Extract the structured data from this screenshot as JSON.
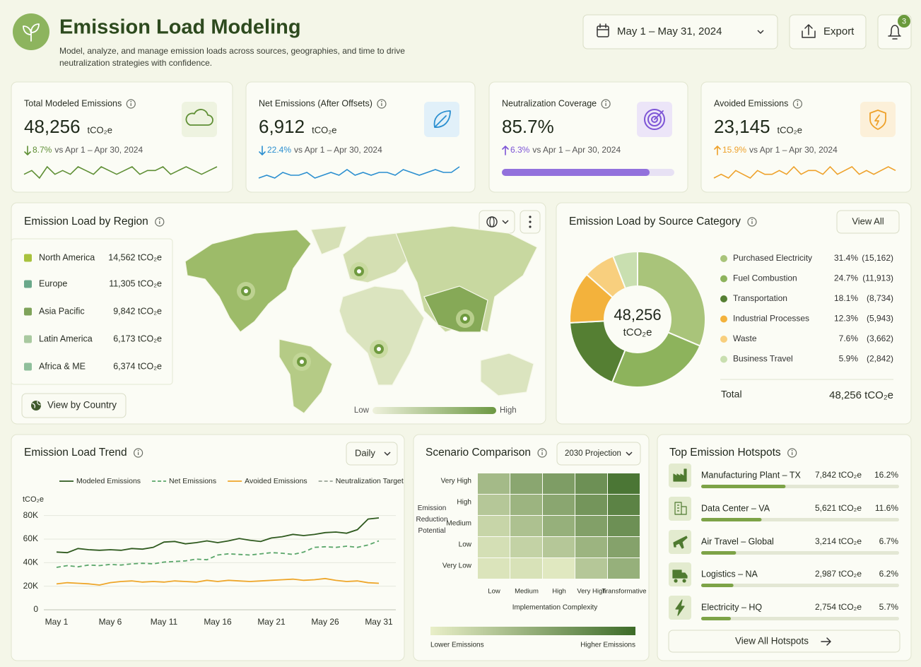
{
  "header": {
    "title": "Emission Load Modeling",
    "subtitle": "Model, analyze, and manage emission loads across sources, geographies, and time to drive neutralization strategies with confidence.",
    "date_range": "May 1 – May 31, 2024",
    "export": "Export",
    "notifications": "3"
  },
  "kpis": [
    {
      "title": "Total Modeled Emissions",
      "value": "48,256",
      "unit": "tCO₂e",
      "direction": "down",
      "change": "8.7%",
      "comparison": "vs Apr 1 – Apr 30, 2024",
      "color": "#5f8f35",
      "sparkline": [
        5,
        6,
        4,
        7,
        5,
        6,
        5,
        7,
        6,
        5,
        7,
        6,
        5,
        6,
        7,
        5,
        6,
        6,
        7,
        5,
        6,
        7,
        6,
        5,
        6,
        7
      ]
    },
    {
      "title": "Net Emissions (After Offsets)",
      "value": "6,912",
      "unit": "tCO₂e",
      "direction": "down",
      "change": "22.4%",
      "comparison": "vs Apr 1 – Apr 30, 2024",
      "color": "#2b8fd0",
      "sparkline": [
        4,
        5,
        4,
        6,
        5,
        5,
        6,
        4,
        5,
        6,
        5,
        7,
        5,
        6,
        5,
        6,
        6,
        5,
        7,
        6,
        5,
        6,
        7,
        6,
        6,
        8
      ]
    },
    {
      "title": "Neutralization Coverage",
      "value": "85.7%",
      "progress": 85.7,
      "direction": "up",
      "change": "6.3%",
      "comparison": "vs Apr 1 – Apr 30, 2024",
      "color": "#7d55d6"
    },
    {
      "title": "Avoided Emissions",
      "value": "23,145",
      "unit": "tCO₂e",
      "direction": "up",
      "change": "15.9%",
      "comparison": "vs Apr 1 – Apr 30, 2024",
      "color": "#eea12a",
      "sparkline": [
        4,
        5,
        4,
        6,
        5,
        4,
        6,
        5,
        5,
        6,
        5,
        7,
        5,
        6,
        6,
        5,
        7,
        5,
        6,
        7,
        5,
        6,
        5,
        6,
        7,
        6
      ]
    }
  ],
  "region": {
    "title": "Emission Load by Region",
    "items": [
      {
        "name": "North America",
        "value": "14,562 tCO₂e",
        "color": "#a8c23e"
      },
      {
        "name": "Europe",
        "value": "11,305 tCO₂e",
        "color": "#6aa88a"
      },
      {
        "name": "Asia Pacific",
        "value": "9,842 tCO₂e",
        "color": "#7fa35a"
      },
      {
        "name": "Latin America",
        "value": "6,173 tCO₂e",
        "color": "#a9c9a0"
      },
      {
        "name": "Africa & ME",
        "value": "6,374 tCO₂e",
        "color": "#8fbf9b"
      }
    ],
    "button": "View by Country",
    "scale_low": "Low",
    "scale_high": "High"
  },
  "chart_data": [
    {
      "type": "line",
      "title": "Emission Load Trend",
      "control": "Daily",
      "y_label": "tCO₂e",
      "categories": [
        "May 1",
        null,
        null,
        null,
        null,
        "May 6",
        null,
        null,
        null,
        null,
        "May 11",
        null,
        null,
        null,
        null,
        "May 16",
        null,
        null,
        null,
        null,
        "May 21",
        null,
        null,
        null,
        null,
        "May 26",
        null,
        null,
        null,
        null,
        "May 31"
      ],
      "series": [
        {
          "name": "Modeled Emissions",
          "color": "#2f5a1f",
          "dash": false,
          "values": [
            49000,
            48500,
            52000,
            51000,
            50500,
            51000,
            50500,
            52000,
            51500,
            53000,
            57500,
            58000,
            56000,
            57000,
            58500,
            57000,
            58500,
            60500,
            59000,
            58000,
            61000,
            62000,
            64000,
            63000,
            64000,
            65500,
            66000,
            65000,
            68000,
            77000,
            78000
          ]
        },
        {
          "name": "Net Emissions",
          "color": "#5aa66a",
          "dash": true,
          "values": [
            36000,
            37500,
            36500,
            38000,
            37500,
            38500,
            38000,
            39000,
            39500,
            39000,
            40500,
            41000,
            41500,
            43000,
            42500,
            46500,
            47500,
            47000,
            46500,
            47500,
            48500,
            48000,
            47000,
            49000,
            53000,
            53500,
            53000,
            54000,
            53000,
            55000,
            58500
          ]
        },
        {
          "name": "Avoided Emissions",
          "color": "#eea62a",
          "dash": false,
          "values": [
            22000,
            23000,
            22500,
            22000,
            21000,
            23000,
            24000,
            24500,
            23500,
            24000,
            23500,
            24500,
            24000,
            23500,
            25000,
            24000,
            25000,
            24500,
            24000,
            24500,
            25000,
            25500,
            26000,
            25000,
            25500,
            26500,
            25000,
            24000,
            24500,
            23000,
            22500
          ]
        },
        {
          "name": "Neutralization Target",
          "color": "#98a396",
          "dash": true,
          "values": [
            null,
            null,
            null,
            null,
            null,
            null,
            null,
            null,
            null,
            null,
            null,
            null,
            null,
            null,
            null,
            null,
            null,
            null,
            null,
            null,
            null,
            null,
            null,
            null,
            null,
            null,
            null,
            null,
            null,
            null,
            null
          ]
        }
      ],
      "ylim": [
        0,
        90000
      ],
      "yticks": [
        0,
        {
          "value": 20000,
          "label": "20K"
        },
        {
          "value": 40000,
          "label": "40K"
        },
        {
          "value": 60000,
          "label": "60K"
        },
        {
          "value": 80000,
          "label": "80K"
        }
      ],
      "grid": true
    },
    {
      "type": "pie",
      "title": "Emission Load by Source Category",
      "button": "View All",
      "center_value": "48,256",
      "center_unit": "tCO₂e",
      "categories": [
        "Purchased Electricity",
        "Fuel Combustion",
        "Transportation",
        "Industrial Processes",
        "Waste",
        "Business Travel"
      ],
      "values": [
        31.4,
        24.7,
        18.1,
        12.3,
        7.6,
        5.9
      ],
      "value_labels": [
        "31.4%",
        "24.7%",
        "18.1%",
        "12.3%",
        "7.6%",
        "5.9%"
      ],
      "amount_labels": [
        "(15,162)",
        "(11,913)",
        "(8,734)",
        "(5,943)",
        "(3,662)",
        "(2,842)"
      ],
      "colors": [
        "#a9c47a",
        "#8db35c",
        "#557f33",
        "#f3b23c",
        "#f8cf7e",
        "#c9dfb0"
      ],
      "total_label": "Total",
      "total_value": "48,256 tCO₂e"
    },
    {
      "type": "heatmap",
      "title": "Scenario Comparison",
      "control": "2030 Projection",
      "x_label": "Implementation Complexity",
      "y_label": "Emission Reduction Potential",
      "categories": [
        "Low",
        "Medium",
        "High",
        "Very High",
        "Transformative"
      ],
      "y_categories": [
        "Very High",
        "High",
        "Medium",
        "Low",
        "Very Low"
      ],
      "values": [
        [
          40,
          55,
          62,
          72,
          92
        ],
        [
          30,
          45,
          55,
          68,
          82
        ],
        [
          20,
          35,
          48,
          60,
          72
        ],
        [
          12,
          22,
          30,
          45,
          58
        ],
        [
          8,
          10,
          5,
          30,
          48
        ]
      ],
      "zlim": [
        0,
        100
      ],
      "colorscale": [
        "#e9efc8",
        "#3d6b28"
      ],
      "scale_low": "Lower Emissions",
      "scale_high": "Higher Emissions"
    }
  ],
  "hotspots": {
    "title": "Top Emission Hotspots",
    "items": [
      {
        "name": "Manufacturing Plant – TX",
        "value": "7,842 tCO₂e",
        "share": 16.2,
        "share_label": "16.2%"
      },
      {
        "name": "Data Center – VA",
        "value": "5,621 tCO₂e",
        "share": 11.6,
        "share_label": "11.6%"
      },
      {
        "name": "Air Travel – Global",
        "value": "3,214 tCO₂e",
        "share": 6.7,
        "share_label": "6.7%"
      },
      {
        "name": "Logistics – NA",
        "value": "2,987 tCO₂e",
        "share": 6.2,
        "share_label": "6.2%"
      },
      {
        "name": "Electricity – HQ",
        "value": "2,754 tCO₂e",
        "share": 5.7,
        "share_label": "5.7%"
      }
    ],
    "button": "View All Hotspots"
  }
}
